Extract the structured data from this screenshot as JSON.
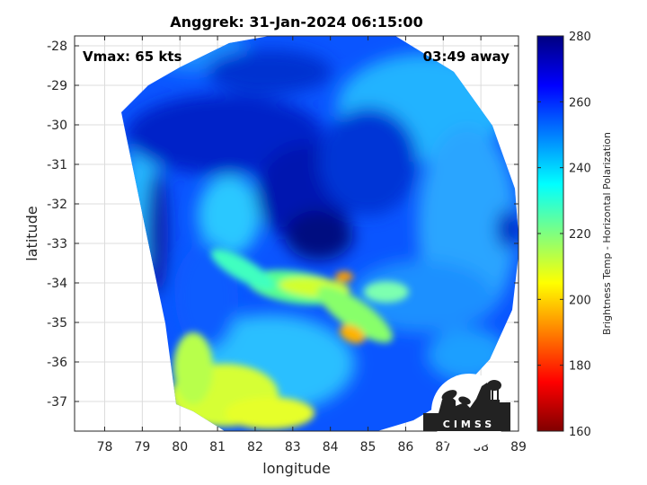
{
  "chart_data": {
    "type": "heatmap",
    "title": "Anggrek: 31-Jan-2024 06:15:00",
    "xlabel": "longitude",
    "ylabel": "latitude",
    "xlim": [
      77.2,
      89.0
    ],
    "ylim": [
      -37.75,
      -27.75
    ],
    "x_ticks": [
      78,
      79,
      80,
      81,
      82,
      83,
      84,
      85,
      86,
      87,
      88,
      89
    ],
    "y_ticks": [
      -28,
      -29,
      -30,
      -31,
      -32,
      -33,
      -34,
      -35,
      -36,
      -37
    ],
    "grid": true,
    "annotations": {
      "left": "Vmax: 65 kts",
      "right": "03:49 away"
    },
    "colorbar": {
      "label": "Brightness Temp - Horizontal Polarization",
      "range": [
        160,
        280
      ],
      "ticks": [
        160,
        180,
        200,
        220,
        240,
        260,
        280
      ],
      "colormap": "jet"
    },
    "storm_center": {
      "lon": 83.6,
      "lat": -32.9,
      "value": 272
    },
    "background_value": 255,
    "features": [
      {
        "name": "warm-arc-core",
        "lon": 83.0,
        "lat": -34.1,
        "value": 208
      },
      {
        "name": "warm-arc-east",
        "lon": 84.0,
        "lat": -33.9,
        "value": 198
      },
      {
        "name": "warm-band-south",
        "lon": 84.6,
        "lat": -35.5,
        "value": 195
      },
      {
        "name": "warm-sw-region",
        "lon": 80.8,
        "lat": -37.2,
        "value": 214
      },
      {
        "name": "cold-band-north",
        "lon": 82.0,
        "lat": -30.2,
        "value": 268
      },
      {
        "name": "west-swath-strip",
        "lon": 79.2,
        "lat": -31.8,
        "value": 244
      }
    ],
    "logo_text": "CIMSS"
  }
}
